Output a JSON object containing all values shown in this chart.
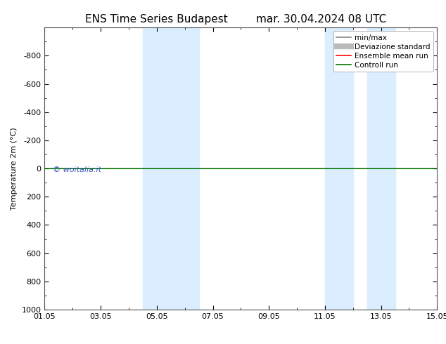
{
  "title": "ENS Time Series Budapest",
  "title_right": "mar. 30.04.2024 08 UTC",
  "ylabel": "Temperature 2m (°C)",
  "ylim_top": -1000,
  "ylim_bottom": 1000,
  "yticks": [
    -800,
    -600,
    -400,
    -200,
    0,
    200,
    400,
    600,
    800,
    1000
  ],
  "xtick_labels": [
    "01.05",
    "03.05",
    "05.05",
    "07.05",
    "09.05",
    "11.05",
    "13.05",
    "15.05"
  ],
  "xtick_positions": [
    0,
    2,
    4,
    6,
    8,
    10,
    12,
    14
  ],
  "xlim": [
    0,
    14
  ],
  "blue_bands": [
    {
      "x_start": 3.5,
      "x_end": 4.5
    },
    {
      "x_start": 4.5,
      "x_end": 5.5
    },
    {
      "x_start": 10.0,
      "x_end": 11.0
    },
    {
      "x_start": 11.5,
      "x_end": 12.5
    }
  ],
  "green_line_y": 0,
  "watermark": "© woitalia.it",
  "watermark_color": "#3355bb",
  "background_color": "#ffffff",
  "plot_bg_color": "#ffffff",
  "band_color": "#daeeff",
  "legend_items": [
    {
      "label": "min/max",
      "color": "#888888",
      "lw": 1.2
    },
    {
      "label": "Deviazione standard",
      "color": "#bbbbbb",
      "lw": 6
    },
    {
      "label": "Ensemble mean run",
      "color": "#ff0000",
      "lw": 1.2
    },
    {
      "label": "Controll run",
      "color": "#007700",
      "lw": 1.2
    }
  ],
  "title_fontsize": 11,
  "axis_fontsize": 8,
  "tick_fontsize": 8,
  "legend_fontsize": 7.5
}
